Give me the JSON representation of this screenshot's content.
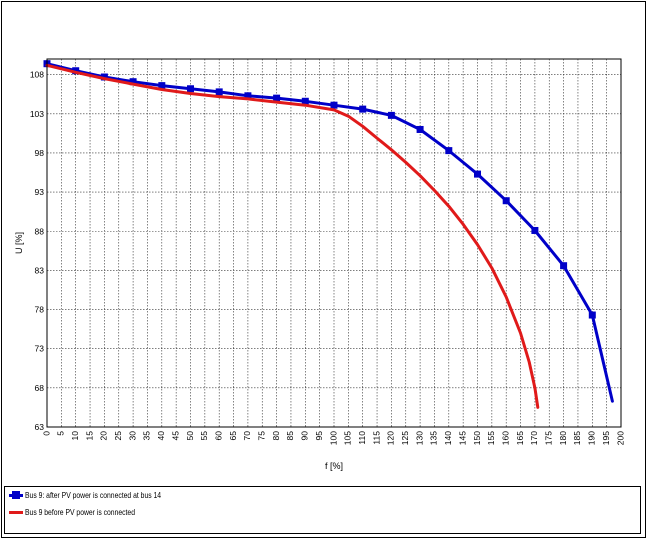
{
  "chart_data": {
    "type": "line",
    "title": "",
    "xlabel": "f [%]",
    "ylabel": "U [%]",
    "xlim": [
      0,
      200
    ],
    "ylim": [
      63,
      110
    ],
    "xticks": [
      0,
      5,
      10,
      15,
      20,
      25,
      30,
      35,
      40,
      45,
      50,
      55,
      60,
      65,
      70,
      75,
      80,
      85,
      90,
      95,
      100,
      105,
      110,
      115,
      120,
      125,
      130,
      135,
      140,
      145,
      150,
      155,
      160,
      165,
      170,
      175,
      180,
      185,
      190,
      195,
      200
    ],
    "yticks": [
      63,
      68,
      73,
      78,
      83,
      88,
      93,
      98,
      103,
      108
    ],
    "grid": true,
    "legend_position": "bottom",
    "series": [
      {
        "name": "Bus 9:  after PV power is connected at bus 14",
        "color": "#0000c8",
        "marker": "square",
        "x": [
          0,
          10,
          20,
          30,
          40,
          50,
          60,
          70,
          80,
          90,
          100,
          110,
          120,
          130,
          140,
          150,
          160,
          170,
          180,
          190,
          197
        ],
        "y": [
          109.4,
          108.5,
          107.7,
          107.1,
          106.6,
          106.2,
          105.8,
          105.3,
          105.0,
          104.6,
          104.1,
          103.6,
          102.8,
          101.0,
          98.3,
          95.3,
          91.9,
          88.1,
          83.6,
          77.3,
          66.3
        ],
        "marked_x": [
          0,
          10,
          20,
          30,
          40,
          50,
          60,
          70,
          80,
          90,
          100,
          110,
          120,
          130,
          140,
          150,
          160,
          170,
          180,
          190
        ]
      },
      {
        "name": "Bus 9  before PV power is connected",
        "color": "#e01a1a",
        "marker": "none",
        "x": [
          0,
          10,
          20,
          30,
          40,
          50,
          60,
          70,
          80,
          90,
          100,
          105,
          110,
          115,
          120,
          125,
          130,
          135,
          140,
          145,
          150,
          155,
          160,
          165,
          168,
          170,
          171
        ],
        "y": [
          109.2,
          108.3,
          107.5,
          106.8,
          106.1,
          105.6,
          105.2,
          104.9,
          104.5,
          104.1,
          103.5,
          102.7,
          101.4,
          99.9,
          98.4,
          96.8,
          95.1,
          93.2,
          91.2,
          88.9,
          86.3,
          83.3,
          79.6,
          75.0,
          71.3,
          68.0,
          65.5
        ]
      }
    ]
  }
}
